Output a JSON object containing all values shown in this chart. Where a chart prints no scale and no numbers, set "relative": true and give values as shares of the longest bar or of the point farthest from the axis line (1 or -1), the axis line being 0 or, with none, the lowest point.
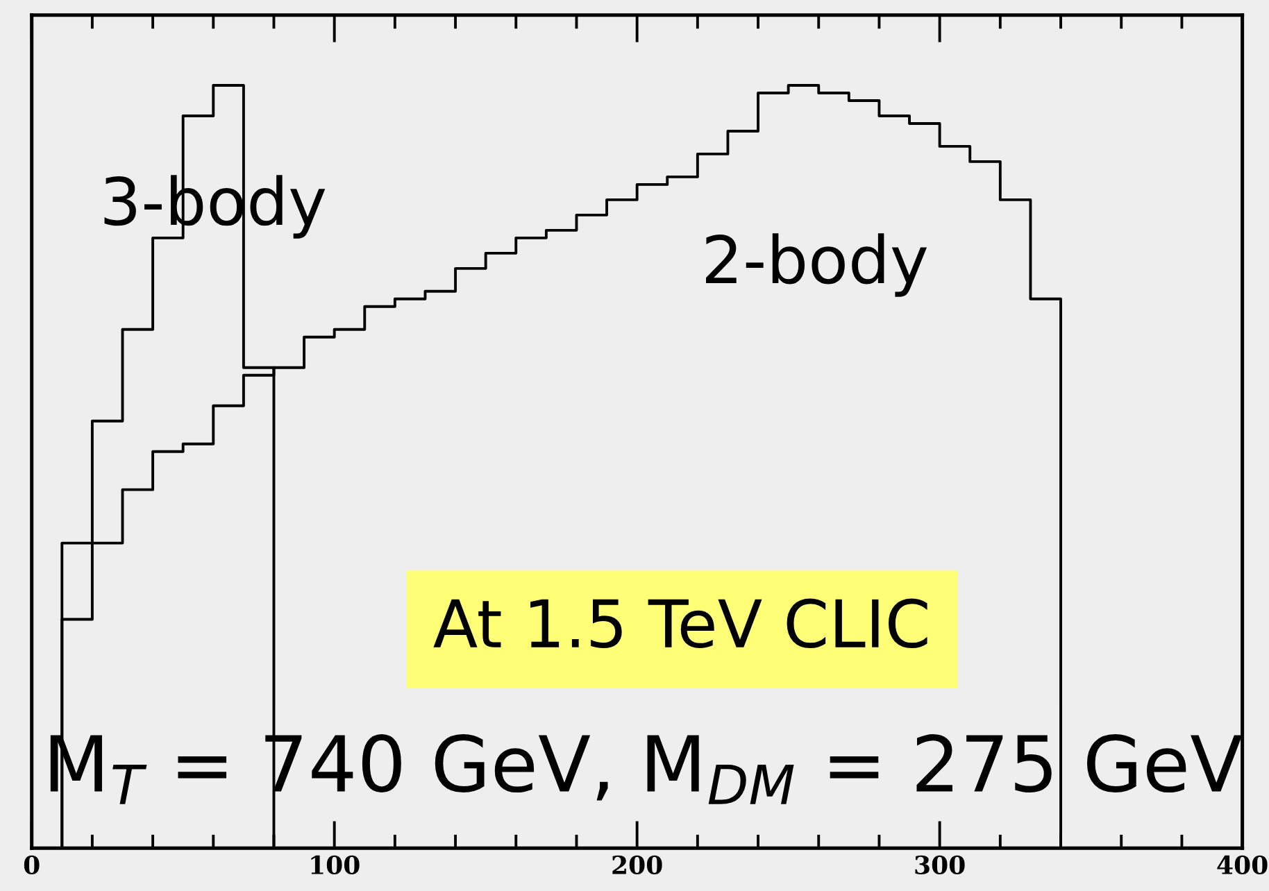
{
  "chart_data": {
    "type": "step",
    "relative": true,
    "series": [
      {
        "name": "3-body",
        "color": "#000000",
        "x": [
          0,
          10,
          20,
          30,
          40,
          50,
          60,
          70,
          80
        ],
        "values": [
          0,
          0.4,
          0.56,
          0.68,
          0.8,
          0.96,
          1.0,
          0.63,
          0
        ]
      },
      {
        "name": "2-body",
        "color": "#000000",
        "x": [
          0,
          10,
          20,
          30,
          40,
          50,
          60,
          70,
          80,
          90,
          100,
          110,
          120,
          130,
          140,
          150,
          160,
          170,
          180,
          190,
          200,
          210,
          220,
          230,
          240,
          250,
          260,
          270,
          280,
          290,
          300,
          310,
          320,
          330,
          340
        ],
        "values": [
          0,
          0.3,
          0.4,
          0.47,
          0.52,
          0.53,
          0.58,
          0.62,
          0.63,
          0.67,
          0.68,
          0.71,
          0.72,
          0.73,
          0.76,
          0.78,
          0.8,
          0.81,
          0.83,
          0.85,
          0.87,
          0.88,
          0.91,
          0.94,
          0.99,
          1.0,
          0.99,
          0.98,
          0.96,
          0.95,
          0.92,
          0.9,
          0.85,
          0.72,
          0
        ]
      }
    ],
    "xlim": [
      0,
      400
    ],
    "xticks": [
      0,
      {
        "value": 20,
        "label": null
      },
      {
        "value": 40,
        "label": null
      },
      {
        "value": 60,
        "label": null
      },
      {
        "value": 80,
        "label": null
      },
      100,
      {
        "value": 120,
        "label": null
      },
      {
        "value": 140,
        "label": null
      },
      {
        "value": 160,
        "label": null
      },
      {
        "value": 180,
        "label": null
      },
      200,
      {
        "value": 220,
        "label": null
      },
      {
        "value": 240,
        "label": null
      },
      {
        "value": 260,
        "label": null
      },
      {
        "value": 280,
        "label": null
      },
      300,
      {
        "value": 320,
        "label": null
      },
      {
        "value": 340,
        "label": null
      },
      {
        "value": 360,
        "label": null
      },
      {
        "value": 380,
        "label": null
      },
      400
    ],
    "tick_labels": "x",
    "grid": false,
    "legend": false,
    "annotations": [
      "At 1.5 TeV CLIC",
      "M$_{T}$ = 740 GeV, M$_{DM}$ = 275 GeV"
    ]
  }
}
